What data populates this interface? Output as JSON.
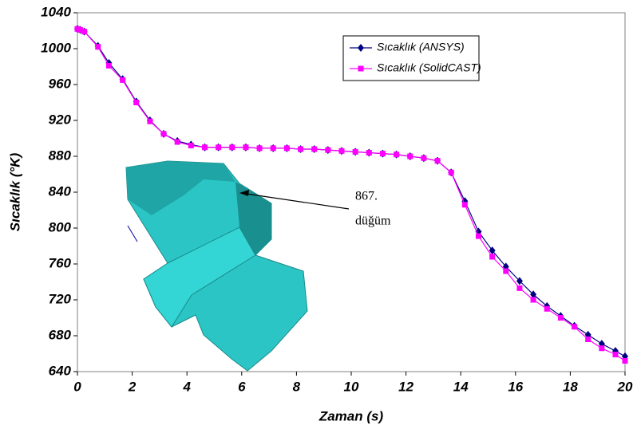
{
  "chart_data": {
    "type": "line",
    "x": [
      0,
      0.1,
      0.25,
      0.75,
      1.15,
      1.65,
      2.15,
      2.65,
      3.15,
      3.65,
      4.15,
      4.65,
      5.15,
      5.65,
      6.15,
      6.65,
      7.15,
      7.65,
      8.15,
      8.65,
      9.15,
      9.65,
      10.15,
      10.65,
      11.15,
      11.65,
      12.15,
      12.65,
      13.15,
      13.65,
      14.15,
      14.65,
      15.15,
      15.65,
      16.15,
      16.65,
      17.15,
      17.65,
      18.15,
      18.65,
      19.15,
      19.65,
      20
    ],
    "series": [
      {
        "name": "Sıcaklık (ANSYS)",
        "color": "#000080",
        "marker": "diamond",
        "values": [
          1022,
          1021,
          1019,
          1003,
          984,
          966,
          941,
          920,
          905,
          897,
          893,
          890,
          890,
          890,
          890,
          889,
          889,
          889,
          888,
          888,
          887,
          886,
          885,
          884,
          883,
          882,
          880,
          878,
          875,
          862,
          830,
          796,
          775,
          757,
          741,
          726,
          713,
          702,
          691,
          681,
          671,
          663,
          657
        ]
      },
      {
        "name": "Sıcaklık (SolidCAST)",
        "color": "#ff00ff",
        "marker": "square",
        "values": [
          1022,
          1021,
          1019,
          1002,
          981,
          965,
          940,
          919,
          905,
          896,
          892,
          890,
          890,
          890,
          890,
          889,
          889,
          889,
          888,
          888,
          887,
          886,
          885,
          884,
          883,
          882,
          880,
          878,
          875,
          862,
          826,
          791,
          768,
          752,
          733,
          720,
          710,
          700,
          690,
          676,
          666,
          659,
          652
        ]
      }
    ],
    "xlim": [
      0,
      20
    ],
    "xticks": [
      0,
      2,
      4,
      6,
      8,
      10,
      12,
      14,
      16,
      18,
      20
    ],
    "ylim": [
      640,
      1040
    ],
    "yticks": [
      640,
      680,
      720,
      760,
      800,
      840,
      880,
      920,
      960,
      1000,
      1040
    ],
    "xlabel": "Zaman (s)",
    "ylabel": "Sıcaklık (°K)",
    "annotation": {
      "line1": "867.",
      "line2": "düğüm"
    },
    "legend": "upper-right"
  }
}
